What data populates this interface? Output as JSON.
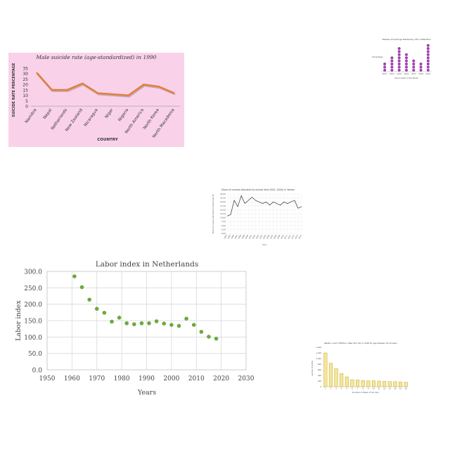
{
  "chart_data": [
    {
      "id": "male-suicide",
      "type": "line",
      "title": "Male suicide rate (age-standardized) in 1990",
      "xlabel": "COUNTRY",
      "ylabel": "SUICIDE RATE PERCENTAGE",
      "categories": [
        "Namibia",
        "Nepal",
        "Netherlands",
        "New Zealand",
        "Nicaragua",
        "Niger",
        "Nigeria",
        "North America",
        "North Korea",
        "North Macedonia"
      ],
      "values": [
        31,
        15,
        15,
        21,
        12,
        11,
        10,
        20,
        18,
        12
      ],
      "ylim": [
        0,
        35
      ],
      "yticks": [
        0,
        5,
        10,
        15,
        20,
        25,
        30,
        35
      ],
      "grid": false,
      "colors": {
        "background": "#f9d2ea",
        "line": "#e07f3a",
        "line_shadow": "#a58a88"
      }
    },
    {
      "id": "landings",
      "type": "scatter",
      "title": "Number of Landings Handled by VTC in Mauritius",
      "xlabel": "Year/number of the Month",
      "ylabel": "No. of Landings",
      "categories": [
        "2013",
        "2014",
        "2015",
        "2016",
        "2017",
        "2018",
        "2019"
      ],
      "values": [
        3,
        5,
        8,
        6,
        4,
        3,
        9
      ],
      "note": "dot plot: each dot is one unit",
      "colors": {
        "dot": "#a040b0"
      }
    },
    {
      "id": "animal-feed",
      "type": "line",
      "title": "Share of cereals allocated to animal feed (FAO, 2020) in Yemen",
      "xlabel": "Year",
      "ylabel": "Share of cereals allocated to animal feed (%)",
      "categories": [
        "1994",
        "1995",
        "1996",
        "1997",
        "1998",
        "1999",
        "2000",
        "2001",
        "2002",
        "2003",
        "2004",
        "2005",
        "2006",
        "2007",
        "2008",
        "2009",
        "2010",
        "2011",
        "2012",
        "2013",
        "2014",
        "2015"
      ],
      "values": [
        11.0,
        12.0,
        21.0,
        17.0,
        24.0,
        19.0,
        21.0,
        23.0,
        21.0,
        20.0,
        19.0,
        20.0,
        18.0,
        20.0,
        19.0,
        18.0,
        20.0,
        19.0,
        20.0,
        21.0,
        16.0,
        17.0
      ],
      "ylim": [
        0,
        25
      ],
      "yticks": [
        "0.00",
        "2.50",
        "5.00",
        "7.50",
        "10.00",
        "12.50",
        "15.00",
        "17.50",
        "20.00",
        "22.50",
        "25.00"
      ],
      "grid": true,
      "colors": {
        "line": "#333333"
      }
    },
    {
      "id": "labor-index",
      "type": "scatter",
      "title": "Labor index in Netherlands",
      "xlabel": "Years",
      "ylabel": "Labor index",
      "x": [
        1961,
        1964,
        1967,
        1970,
        1973,
        1976,
        1979,
        1982,
        1985,
        1988,
        1991,
        1994,
        1997,
        2000,
        2003,
        2006,
        2009,
        2012,
        2015,
        2018
      ],
      "y": [
        285,
        252,
        214,
        186,
        174,
        147,
        159,
        142,
        139,
        142,
        142,
        148,
        141,
        137,
        134,
        156,
        137,
        116,
        101,
        95
      ],
      "xlim": [
        1950,
        2030
      ],
      "ylim": [
        0,
        300
      ],
      "xticks": [
        "1950",
        "1960",
        "1970",
        "1980",
        "1990",
        "2000",
        "2010",
        "2020",
        "2030"
      ],
      "yticks": [
        "0.0",
        "50.0",
        "100.0",
        "150.0",
        "200.0",
        "250.0",
        "300.0"
      ],
      "grid": true,
      "colors": {
        "dot": "#6aaa3c"
      }
    },
    {
      "id": "births-count",
      "type": "bar",
      "title": "Weekly count of Births in New York City in 2018 for age between 15-19 years",
      "xlabel": "Number of Week of the Year",
      "ylabel": "number of births",
      "categories": [
        "1",
        "2",
        "3",
        "4",
        "5",
        "6",
        "7",
        "8",
        "9",
        "10",
        "11",
        "12",
        "13",
        "14",
        "15",
        "16"
      ],
      "values": [
        1200,
        830,
        640,
        470,
        350,
        250,
        240,
        220,
        210,
        210,
        200,
        190,
        180,
        180,
        170,
        160
      ],
      "ylim": [
        0,
        1400
      ],
      "yticks": [
        "0",
        "200",
        "400",
        "600",
        "800",
        "1,000",
        "1,200",
        "1,400"
      ],
      "grid": false,
      "colors": {
        "bar": "#f3e89a",
        "bar_edge": "#c9a227"
      }
    }
  ]
}
